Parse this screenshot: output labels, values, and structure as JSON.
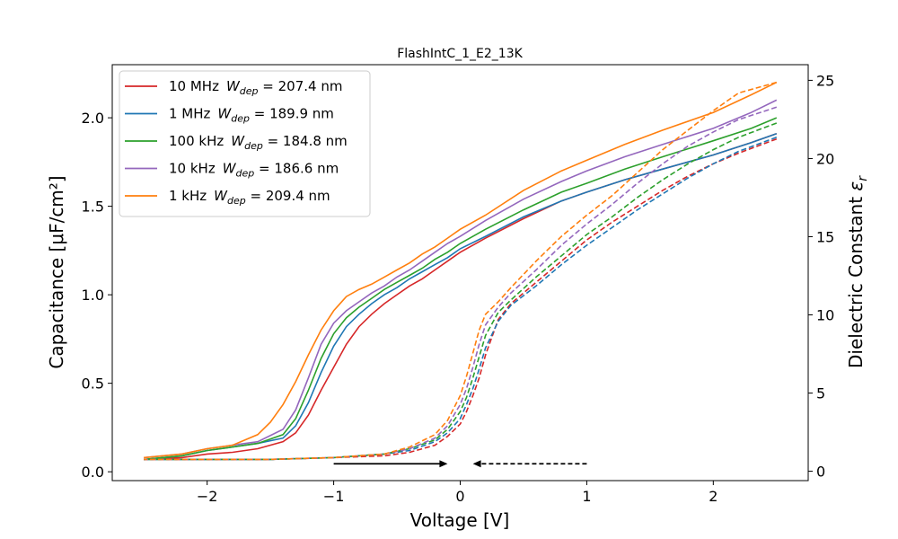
{
  "chart_data": {
    "type": "line",
    "title": "FlashIntC_1_E2_13K",
    "xlabel": "Voltage [V]",
    "ylabel": "Capacitance [μF/cm²]",
    "y2label": "Dielectric Constant ε_r",
    "xlim": [
      -2.75,
      2.75
    ],
    "ylim": [
      -0.05,
      2.3
    ],
    "y2lim": [
      -0.6,
      26.0
    ],
    "xticks": [
      -2,
      -1,
      0,
      1,
      2
    ],
    "xtick_labels": [
      "−2",
      "−1",
      "0",
      "1",
      "2"
    ],
    "yticks": [
      0.0,
      0.5,
      1.0,
      1.5,
      2.0
    ],
    "ytick_labels": [
      "0.0",
      "0.5",
      "1.0",
      "1.5",
      "2.0"
    ],
    "y2ticks": [
      0,
      5,
      10,
      15,
      20,
      25
    ],
    "y2tick_labels": [
      "0",
      "5",
      "10",
      "15",
      "20",
      "25"
    ],
    "legend_position": "upper-left",
    "annotations": [
      {
        "type": "arrow",
        "style": "solid",
        "from": [
          -1.0,
          0.045
        ],
        "to": [
          -0.1,
          0.045
        ]
      },
      {
        "type": "arrow",
        "style": "dashed",
        "from": [
          1.0,
          0.045
        ],
        "to": [
          0.1,
          0.045
        ]
      }
    ],
    "series": [
      {
        "name_main": "10 MHz",
        "name_sym": "W",
        "name_sub": "dep",
        "name_value": " = 207.4 nm",
        "color": "#d62728",
        "forward": {
          "x": [
            -2.5,
            -2.2,
            -2.0,
            -1.8,
            -1.6,
            -1.4,
            -1.3,
            -1.2,
            -1.1,
            -1.0,
            -0.9,
            -0.8,
            -0.7,
            -0.6,
            -0.5,
            -0.4,
            -0.3,
            -0.2,
            -0.1,
            0.0,
            0.2,
            0.5,
            0.8,
            1.0,
            1.3,
            1.6,
            2.0,
            2.3,
            2.5
          ],
          "y": [
            0.07,
            0.08,
            0.1,
            0.11,
            0.13,
            0.17,
            0.22,
            0.32,
            0.46,
            0.59,
            0.72,
            0.82,
            0.89,
            0.95,
            1.0,
            1.05,
            1.09,
            1.14,
            1.19,
            1.24,
            1.32,
            1.43,
            1.53,
            1.58,
            1.65,
            1.71,
            1.79,
            1.86,
            1.91
          ]
        },
        "reverse": {
          "x": [
            2.5,
            2.2,
            2.0,
            1.8,
            1.6,
            1.4,
            1.2,
            1.0,
            0.8,
            0.6,
            0.4,
            0.3,
            0.2,
            0.15,
            0.1,
            0.05,
            0.0,
            -0.1,
            -0.2,
            -0.4,
            -0.6,
            -1.0,
            -1.5,
            -2.0,
            -2.5
          ],
          "y": [
            1.88,
            1.8,
            1.74,
            1.67,
            1.59,
            1.5,
            1.41,
            1.31,
            1.19,
            1.07,
            0.95,
            0.86,
            0.66,
            0.53,
            0.43,
            0.34,
            0.27,
            0.2,
            0.15,
            0.11,
            0.09,
            0.08,
            0.07,
            0.07,
            0.07
          ]
        }
      },
      {
        "name_main": "1 MHz",
        "name_sym": "W",
        "name_sub": "dep",
        "name_value": " = 189.9 nm",
        "color": "#1f77b4",
        "forward": {
          "x": [
            -2.5,
            -2.2,
            -2.0,
            -1.8,
            -1.6,
            -1.4,
            -1.3,
            -1.2,
            -1.1,
            -1.0,
            -0.9,
            -0.8,
            -0.7,
            -0.6,
            -0.5,
            -0.4,
            -0.3,
            -0.2,
            -0.1,
            0.0,
            0.2,
            0.5,
            0.8,
            1.0,
            1.3,
            1.6,
            2.0,
            2.3,
            2.5
          ],
          "y": [
            0.07,
            0.09,
            0.12,
            0.14,
            0.16,
            0.19,
            0.26,
            0.39,
            0.56,
            0.71,
            0.82,
            0.89,
            0.95,
            1.0,
            1.04,
            1.09,
            1.13,
            1.17,
            1.21,
            1.26,
            1.33,
            1.44,
            1.53,
            1.58,
            1.65,
            1.71,
            1.79,
            1.86,
            1.91
          ]
        },
        "reverse": {
          "x": [
            2.5,
            2.2,
            2.0,
            1.8,
            1.6,
            1.4,
            1.2,
            1.0,
            0.8,
            0.6,
            0.4,
            0.3,
            0.2,
            0.15,
            0.1,
            0.05,
            0.0,
            -0.1,
            -0.2,
            -0.4,
            -0.6,
            -1.0,
            -1.5,
            -2.0,
            -2.5
          ],
          "y": [
            1.89,
            1.81,
            1.74,
            1.66,
            1.57,
            1.48,
            1.38,
            1.28,
            1.17,
            1.05,
            0.94,
            0.85,
            0.7,
            0.58,
            0.47,
            0.38,
            0.3,
            0.22,
            0.17,
            0.12,
            0.1,
            0.08,
            0.07,
            0.07,
            0.07
          ]
        }
      },
      {
        "name_main": "100 kHz",
        "name_sym": "W",
        "name_sub": "dep",
        "name_value": " = 184.8 nm",
        "color": "#2ca02c",
        "forward": {
          "x": [
            -2.5,
            -2.2,
            -2.0,
            -1.8,
            -1.6,
            -1.4,
            -1.3,
            -1.2,
            -1.1,
            -1.0,
            -0.9,
            -0.8,
            -0.7,
            -0.6,
            -0.5,
            -0.4,
            -0.3,
            -0.2,
            -0.1,
            0.0,
            0.2,
            0.5,
            0.8,
            1.0,
            1.3,
            1.6,
            2.0,
            2.3,
            2.5
          ],
          "y": [
            0.07,
            0.09,
            0.12,
            0.14,
            0.16,
            0.21,
            0.3,
            0.46,
            0.64,
            0.78,
            0.87,
            0.93,
            0.98,
            1.03,
            1.07,
            1.11,
            1.15,
            1.2,
            1.24,
            1.29,
            1.37,
            1.48,
            1.58,
            1.63,
            1.71,
            1.78,
            1.87,
            1.94,
            2.0
          ]
        },
        "reverse": {
          "x": [
            2.5,
            2.2,
            2.0,
            1.8,
            1.6,
            1.4,
            1.2,
            1.0,
            0.8,
            0.6,
            0.4,
            0.3,
            0.2,
            0.15,
            0.1,
            0.05,
            0.0,
            -0.1,
            -0.2,
            -0.4,
            -0.6,
            -1.0,
            -1.5,
            -2.0,
            -2.5
          ],
          "y": [
            1.97,
            1.89,
            1.82,
            1.74,
            1.65,
            1.55,
            1.44,
            1.34,
            1.22,
            1.1,
            0.97,
            0.9,
            0.77,
            0.65,
            0.53,
            0.42,
            0.34,
            0.24,
            0.18,
            0.13,
            0.1,
            0.08,
            0.07,
            0.07,
            0.07
          ]
        }
      },
      {
        "name_main": "10 kHz",
        "name_sym": "W",
        "name_sub": "dep",
        "name_value": " = 186.6 nm",
        "color": "#9467bd",
        "forward": {
          "x": [
            -2.5,
            -2.2,
            -2.0,
            -1.8,
            -1.6,
            -1.4,
            -1.3,
            -1.2,
            -1.1,
            -1.0,
            -0.9,
            -0.8,
            -0.7,
            -0.6,
            -0.5,
            -0.4,
            -0.3,
            -0.2,
            -0.1,
            0.0,
            0.2,
            0.5,
            0.8,
            1.0,
            1.3,
            1.6,
            2.0,
            2.3,
            2.5
          ],
          "y": [
            0.08,
            0.1,
            0.13,
            0.15,
            0.17,
            0.24,
            0.35,
            0.53,
            0.72,
            0.84,
            0.91,
            0.96,
            1.01,
            1.05,
            1.1,
            1.14,
            1.19,
            1.24,
            1.29,
            1.33,
            1.42,
            1.54,
            1.64,
            1.7,
            1.78,
            1.85,
            1.94,
            2.03,
            2.1
          ]
        },
        "reverse": {
          "x": [
            2.5,
            2.2,
            2.0,
            1.8,
            1.6,
            1.4,
            1.2,
            1.0,
            0.8,
            0.6,
            0.4,
            0.3,
            0.2,
            0.15,
            0.1,
            0.05,
            0.0,
            -0.1,
            -0.2,
            -0.4,
            -0.6,
            -1.0,
            -1.5,
            -2.0,
            -2.5
          ],
          "y": [
            2.06,
            1.99,
            1.92,
            1.84,
            1.74,
            1.63,
            1.51,
            1.4,
            1.28,
            1.14,
            1.01,
            0.93,
            0.83,
            0.72,
            0.59,
            0.47,
            0.38,
            0.26,
            0.19,
            0.13,
            0.1,
            0.08,
            0.07,
            0.07,
            0.07
          ]
        }
      },
      {
        "name_main": "1 kHz",
        "name_sym": "W",
        "name_sub": "dep",
        "name_value": " = 209.4 nm",
        "color": "#ff7f0e",
        "forward": {
          "x": [
            -2.5,
            -2.2,
            -2.0,
            -1.8,
            -1.6,
            -1.5,
            -1.4,
            -1.3,
            -1.2,
            -1.1,
            -1.0,
            -0.9,
            -0.8,
            -0.7,
            -0.6,
            -0.5,
            -0.4,
            -0.3,
            -0.2,
            -0.1,
            0.0,
            0.2,
            0.5,
            0.8,
            1.0,
            1.3,
            1.6,
            2.0,
            2.3,
            2.5
          ],
          "y": [
            0.08,
            0.1,
            0.13,
            0.15,
            0.21,
            0.28,
            0.38,
            0.51,
            0.66,
            0.8,
            0.91,
            0.99,
            1.03,
            1.06,
            1.1,
            1.14,
            1.18,
            1.23,
            1.27,
            1.32,
            1.37,
            1.45,
            1.59,
            1.7,
            1.76,
            1.85,
            1.93,
            2.03,
            2.13,
            2.2
          ]
        },
        "reverse": {
          "x": [
            2.5,
            2.2,
            2.0,
            1.8,
            1.6,
            1.4,
            1.2,
            1.0,
            0.8,
            0.6,
            0.4,
            0.3,
            0.2,
            0.15,
            0.1,
            0.05,
            0.0,
            -0.1,
            -0.2,
            -0.4,
            -0.6,
            -1.0,
            -1.5,
            -2.0,
            -2.5
          ],
          "y": [
            2.2,
            2.14,
            2.04,
            1.93,
            1.82,
            1.69,
            1.56,
            1.45,
            1.33,
            1.19,
            1.04,
            0.96,
            0.89,
            0.8,
            0.67,
            0.54,
            0.43,
            0.29,
            0.21,
            0.14,
            0.1,
            0.08,
            0.07,
            0.07,
            0.07
          ]
        }
      }
    ]
  }
}
